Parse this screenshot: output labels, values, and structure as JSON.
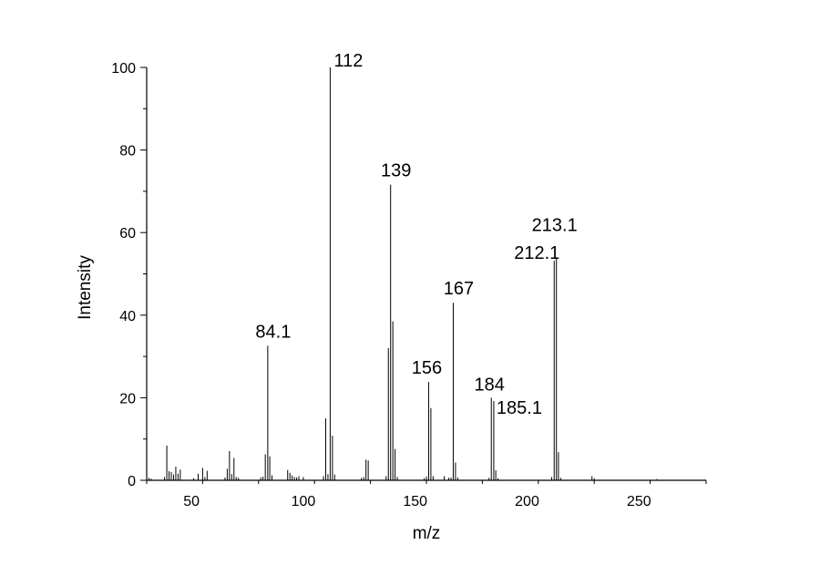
{
  "chart_data": {
    "type": "bar",
    "title": "",
    "xlabel": "m/z",
    "ylabel": "Intensity",
    "xlim": [
      30,
      280
    ],
    "ylim": [
      0,
      100
    ],
    "xticks": [
      50,
      100,
      150,
      200,
      250
    ],
    "yticks": [
      0,
      20,
      40,
      60,
      80,
      100
    ],
    "grid": false,
    "legend": "none",
    "bar_color": "#000000",
    "peaks": [
      {
        "x": 31,
        "y": 0.6
      },
      {
        "x": 32,
        "y": 0.4
      },
      {
        "x": 38,
        "y": 0.8
      },
      {
        "x": 39,
        "y": 8.4
      },
      {
        "x": 40,
        "y": 2.2
      },
      {
        "x": 41,
        "y": 2.0
      },
      {
        "x": 42,
        "y": 1.4
      },
      {
        "x": 43,
        "y": 3.3
      },
      {
        "x": 44,
        "y": 1.6
      },
      {
        "x": 45,
        "y": 2.6
      },
      {
        "x": 51,
        "y": 0.5
      },
      {
        "x": 53,
        "y": 1.6
      },
      {
        "x": 55,
        "y": 3.0
      },
      {
        "x": 56,
        "y": 0.8
      },
      {
        "x": 57,
        "y": 2.3
      },
      {
        "x": 65,
        "y": 0.7
      },
      {
        "x": 66,
        "y": 2.8
      },
      {
        "x": 67,
        "y": 7.1
      },
      {
        "x": 68,
        "y": 1.5
      },
      {
        "x": 69,
        "y": 5.4
      },
      {
        "x": 70,
        "y": 0.8
      },
      {
        "x": 71,
        "y": 0.6
      },
      {
        "x": 81,
        "y": 0.7
      },
      {
        "x": 82,
        "y": 0.9
      },
      {
        "x": 83,
        "y": 6.3
      },
      {
        "x": 84.1,
        "y": 32.6
      },
      {
        "x": 85,
        "y": 5.8
      },
      {
        "x": 86,
        "y": 1.2
      },
      {
        "x": 93,
        "y": 2.5
      },
      {
        "x": 94,
        "y": 1.8
      },
      {
        "x": 95,
        "y": 1.2
      },
      {
        "x": 96,
        "y": 0.8
      },
      {
        "x": 97,
        "y": 0.7
      },
      {
        "x": 98,
        "y": 1.0
      },
      {
        "x": 100,
        "y": 0.8
      },
      {
        "x": 109,
        "y": 1.0
      },
      {
        "x": 110,
        "y": 15.0
      },
      {
        "x": 111,
        "y": 1.5
      },
      {
        "x": 112,
        "y": 100
      },
      {
        "x": 113,
        "y": 10.8
      },
      {
        "x": 114,
        "y": 1.4
      },
      {
        "x": 126,
        "y": 0.6
      },
      {
        "x": 127,
        "y": 0.8
      },
      {
        "x": 128,
        "y": 5.0
      },
      {
        "x": 129,
        "y": 4.8
      },
      {
        "x": 137,
        "y": 1.0
      },
      {
        "x": 138,
        "y": 32.0
      },
      {
        "x": 139,
        "y": 71.6
      },
      {
        "x": 140,
        "y": 38.5
      },
      {
        "x": 141,
        "y": 7.6
      },
      {
        "x": 142,
        "y": 0.8
      },
      {
        "x": 154,
        "y": 0.5
      },
      {
        "x": 155,
        "y": 0.9
      },
      {
        "x": 156,
        "y": 23.8
      },
      {
        "x": 157,
        "y": 17.5
      },
      {
        "x": 158,
        "y": 1.0
      },
      {
        "x": 163,
        "y": 1.0
      },
      {
        "x": 165,
        "y": 0.6
      },
      {
        "x": 166,
        "y": 0.7
      },
      {
        "x": 167,
        "y": 43.0
      },
      {
        "x": 168,
        "y": 4.3
      },
      {
        "x": 169,
        "y": 0.7
      },
      {
        "x": 183,
        "y": 0.6
      },
      {
        "x": 184,
        "y": 20.0
      },
      {
        "x": 185.1,
        "y": 19.2
      },
      {
        "x": 186,
        "y": 2.4
      },
      {
        "x": 187,
        "y": 0.5
      },
      {
        "x": 211,
        "y": 0.8
      },
      {
        "x": 212.1,
        "y": 53.2
      },
      {
        "x": 213.1,
        "y": 54.0
      },
      {
        "x": 214,
        "y": 6.8
      },
      {
        "x": 215,
        "y": 0.6
      },
      {
        "x": 229,
        "y": 1.0
      },
      {
        "x": 230,
        "y": 0.5
      },
      {
        "x": 258,
        "y": 0.3
      }
    ],
    "annotations": [
      {
        "text": "84.1",
        "x": 84.1,
        "y": 32.6
      },
      {
        "text": "112",
        "x": 112,
        "y": 100
      },
      {
        "text": "139",
        "x": 139,
        "y": 71.6
      },
      {
        "text": "156",
        "x": 156,
        "y": 23.8
      },
      {
        "text": "167",
        "x": 167,
        "y": 43.0
      },
      {
        "text": "184",
        "x": 184,
        "y": 20.0
      },
      {
        "text": "185.1",
        "x": 185.1,
        "y": 19.2
      },
      {
        "text": "212.1",
        "x": 212.1,
        "y": 53.2
      },
      {
        "text": "213.1",
        "x": 213.1,
        "y": 54.0
      }
    ]
  }
}
